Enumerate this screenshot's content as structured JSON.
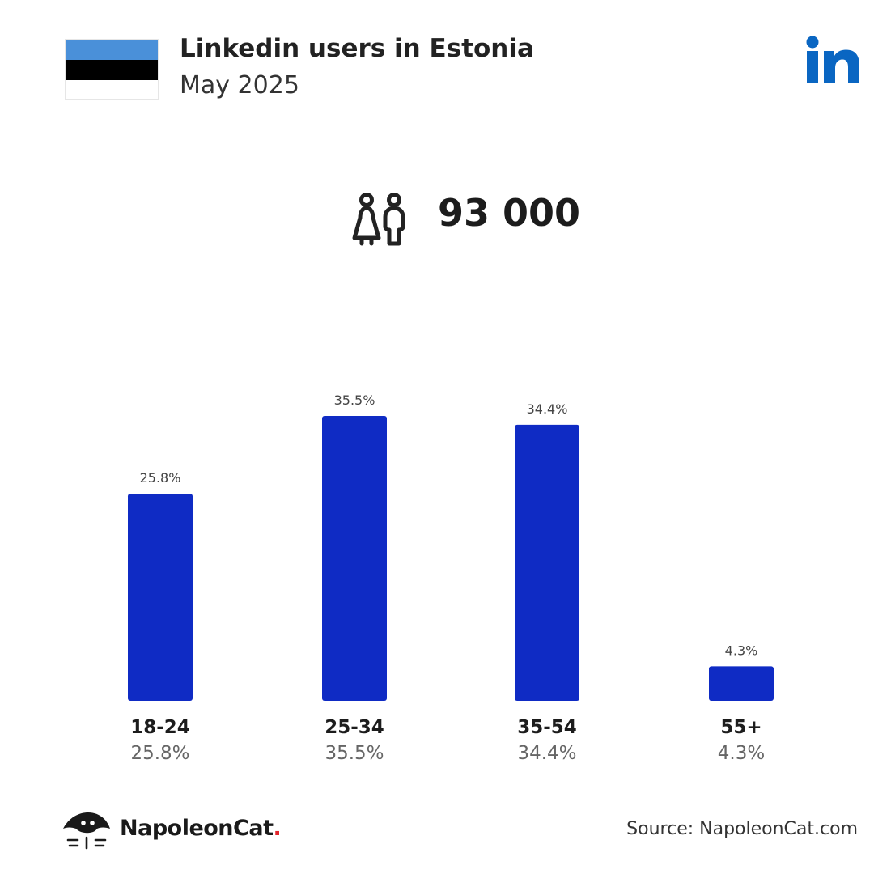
{
  "header": {
    "title": "Linkedin users in Estonia",
    "subtitle": "May 2025"
  },
  "flag": {
    "icon": "estonia-flag-icon",
    "colors": [
      "#4a90d9",
      "#000000",
      "#ffffff"
    ]
  },
  "platform_logo": {
    "icon": "linkedin-logo-icon",
    "color": "#0a66c2"
  },
  "total": {
    "icon": "users-icon",
    "value": "93 000"
  },
  "colors": {
    "bar": "#0f2bc4",
    "value_label": "#444444",
    "category_label": "#1c1c1c",
    "percent_label": "#666666"
  },
  "chart_data": {
    "type": "bar",
    "categories": [
      "18-24",
      "25-34",
      "35-54",
      "55+"
    ],
    "values": [
      25.8,
      35.5,
      34.4,
      4.3
    ],
    "value_labels": [
      "25.8%",
      "35.5%",
      "34.4%",
      "4.3%"
    ],
    "percent_labels": [
      "25.8%",
      "35.5%",
      "34.4%",
      "4.3%"
    ],
    "title": "",
    "xlabel": "",
    "ylabel": "",
    "ylim": [
      0,
      35.5
    ],
    "grid": false,
    "legend": "none"
  },
  "footer": {
    "brand_name": "NapoleonCat",
    "brand_dot": ".",
    "source": "Source: NapoleonCat.com"
  }
}
